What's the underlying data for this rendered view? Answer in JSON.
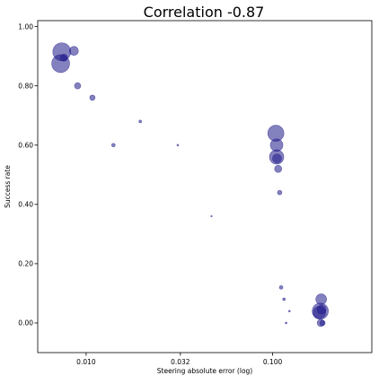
{
  "chart_data": {
    "type": "scatter",
    "title": "Correlation -0.87",
    "xlabel": "Steering absolute error (log)",
    "ylabel": "Success rate",
    "x_scale": "log",
    "xlim": [
      0.0055,
      0.34
    ],
    "ylim": [
      -0.1,
      1.02
    ],
    "x_ticks": [
      0.01,
      0.032,
      0.1
    ],
    "x_tick_labels": [
      "0.010",
      "0.032",
      "0.100"
    ],
    "y_ticks": [
      0.0,
      0.2,
      0.4,
      0.6,
      0.8,
      1.0
    ],
    "y_tick_labels": [
      "0.00",
      "0.20",
      "0.40",
      "0.60",
      "0.80",
      "1.00"
    ],
    "grid": false,
    "point_color": "#1f1a8a",
    "points": [
      {
        "x": 0.0074,
        "y": 0.915,
        "size": 10
      },
      {
        "x": 0.0073,
        "y": 0.875,
        "size": 10
      },
      {
        "x": 0.0076,
        "y": 0.895,
        "size": 4
      },
      {
        "x": 0.0086,
        "y": 0.918,
        "size": 5
      },
      {
        "x": 0.009,
        "y": 0.8,
        "size": 3.5
      },
      {
        "x": 0.0108,
        "y": 0.76,
        "size": 3
      },
      {
        "x": 0.014,
        "y": 0.6,
        "size": 2
      },
      {
        "x": 0.0195,
        "y": 0.68,
        "size": 1.5
      },
      {
        "x": 0.031,
        "y": 0.6,
        "size": 1
      },
      {
        "x": 0.047,
        "y": 0.36,
        "size": 0.8
      },
      {
        "x": 0.104,
        "y": 0.64,
        "size": 9
      },
      {
        "x": 0.105,
        "y": 0.6,
        "size": 7
      },
      {
        "x": 0.105,
        "y": 0.56,
        "size": 8
      },
      {
        "x": 0.1055,
        "y": 0.555,
        "size": 5
      },
      {
        "x": 0.107,
        "y": 0.52,
        "size": 4
      },
      {
        "x": 0.109,
        "y": 0.44,
        "size": 2.5
      },
      {
        "x": 0.111,
        "y": 0.12,
        "size": 2
      },
      {
        "x": 0.115,
        "y": 0.08,
        "size": 1.5
      },
      {
        "x": 0.123,
        "y": 0.04,
        "size": 1
      },
      {
        "x": 0.118,
        "y": 0.0,
        "size": 1
      },
      {
        "x": 0.182,
        "y": 0.08,
        "size": 6
      },
      {
        "x": 0.18,
        "y": 0.04,
        "size": 9
      },
      {
        "x": 0.178,
        "y": 0.035,
        "size": 7
      },
      {
        "x": 0.183,
        "y": 0.045,
        "size": 5
      },
      {
        "x": 0.181,
        "y": 0.0,
        "size": 4
      },
      {
        "x": 0.185,
        "y": 0.0,
        "size": 3
      }
    ]
  }
}
